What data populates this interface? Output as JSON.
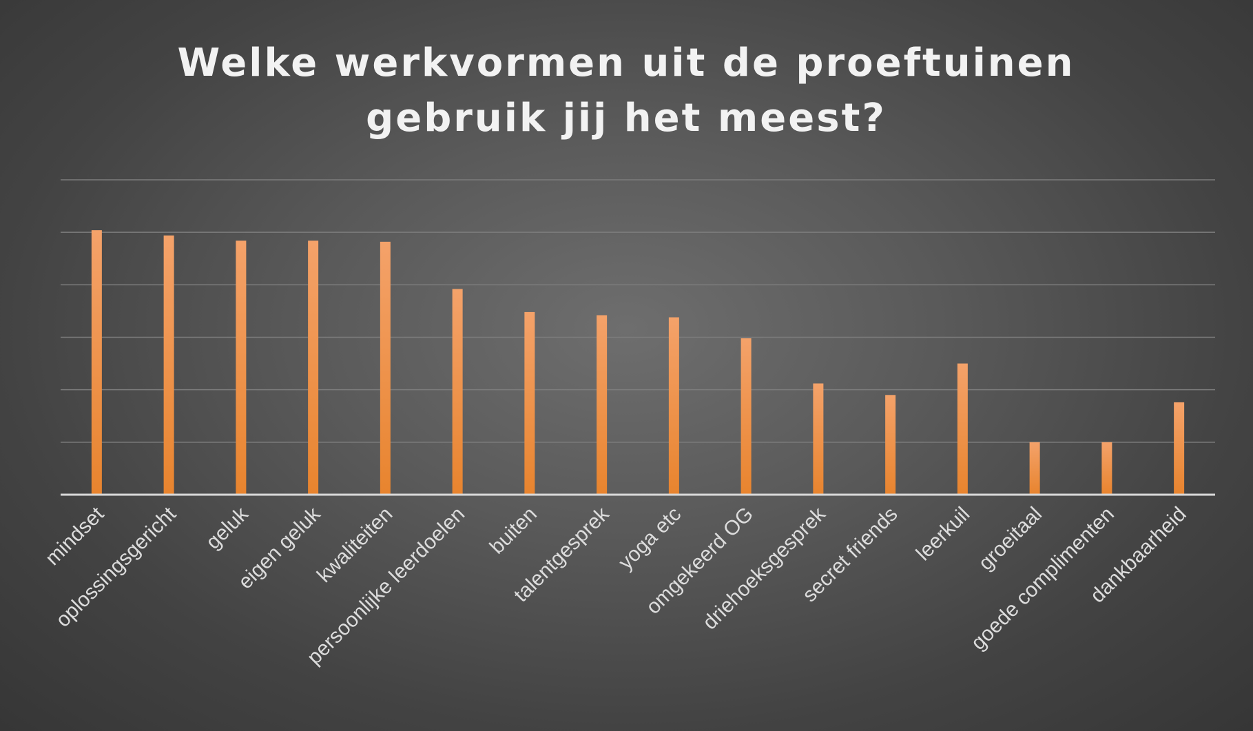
{
  "chart_data": {
    "type": "bar",
    "title_lines": [
      "Welke werkvormen uit de proeftuinen",
      "gebruik jij het meest?"
    ],
    "categories": [
      "mindset",
      "oplossingsgericht",
      "geluk",
      "eigen geluk",
      "kwaliteiten",
      "persoonlijke leerdoelen",
      "buiten",
      "talentgesprek",
      "yoga etc",
      "omgekeerd OG",
      "driehoeksgesprek",
      "secret friends",
      "leerkuil",
      "groeitaal",
      "goede complimenten",
      "dankbaarheid"
    ],
    "values": [
      25.2,
      24.7,
      24.2,
      24.2,
      24.1,
      19.6,
      17.4,
      17.1,
      16.9,
      14.9,
      10.6,
      9.5,
      12.5,
      5,
      5,
      8.8
    ],
    "ylim": [
      0,
      30
    ],
    "ytick_step": 5,
    "grid": true,
    "xlabel": "",
    "ylabel": "",
    "colors": {
      "bar_top": "#f4a26a",
      "bar_bottom": "#e8842e",
      "grid": "#7d7d7d",
      "axis": "#d9d9d9"
    }
  }
}
